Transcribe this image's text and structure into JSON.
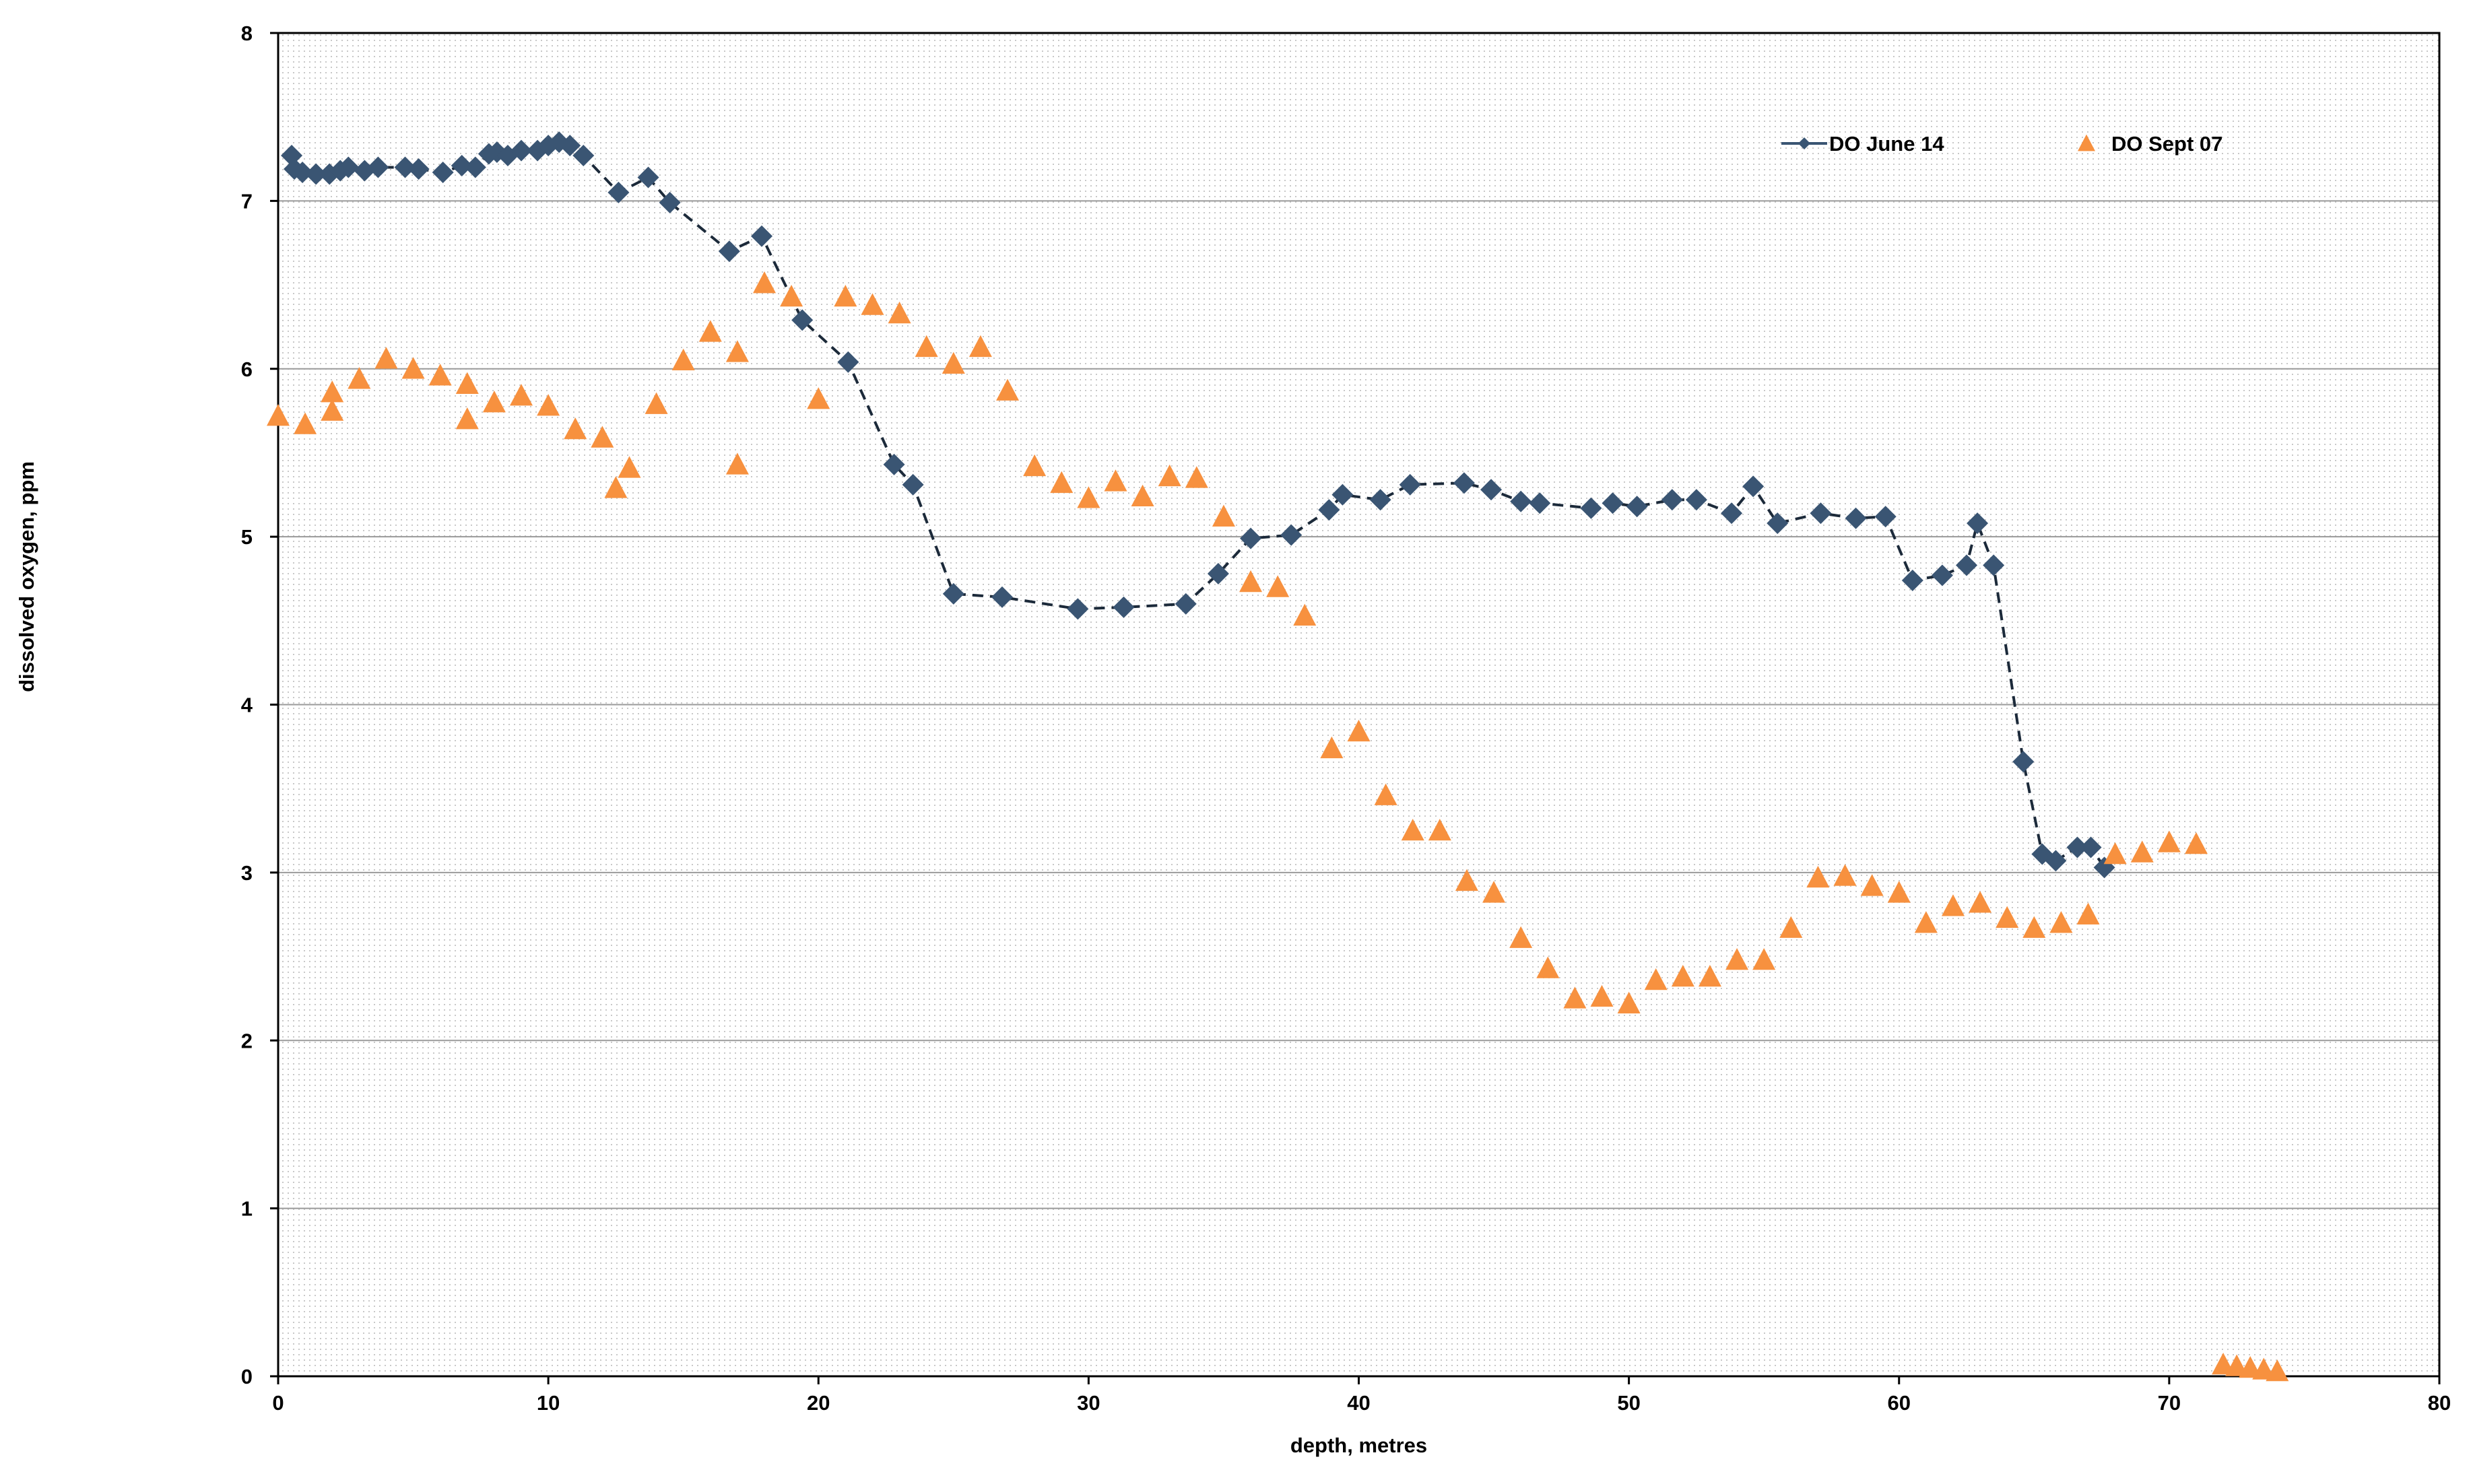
{
  "chart_data": {
    "type": "line",
    "title": "",
    "xlabel": "depth, metres",
    "ylabel": "dissolved oxygen, ppm",
    "xlim": [
      0,
      80
    ],
    "ylim": [
      0,
      8
    ],
    "xticks": [
      0,
      10,
      20,
      30,
      40,
      50,
      60,
      70,
      80
    ],
    "yticks": [
      0,
      1,
      2,
      3,
      4,
      5,
      6,
      7,
      8
    ],
    "grid": "horizontal",
    "legend_position": "top-right",
    "colors": {
      "june": "#3a5573",
      "sept": "#f7913f",
      "gridline": "#9a9a9a",
      "plot_dots": "#c8c8c8"
    },
    "series": [
      {
        "name": "DO June 14",
        "marker": "diamond",
        "line": "dashed",
        "color": "#3a5573",
        "points": [
          [
            0.5,
            7.27
          ],
          [
            0.6,
            7.19
          ],
          [
            0.9,
            7.17
          ],
          [
            1.4,
            7.16
          ],
          [
            1.9,
            7.16
          ],
          [
            2.3,
            7.18
          ],
          [
            2.6,
            7.2
          ],
          [
            3.2,
            7.18
          ],
          [
            3.7,
            7.2
          ],
          [
            4.7,
            7.2
          ],
          [
            5.2,
            7.19
          ],
          [
            6.1,
            7.17
          ],
          [
            6.8,
            7.21
          ],
          [
            7.3,
            7.2
          ],
          [
            7.8,
            7.28
          ],
          [
            8.1,
            7.29
          ],
          [
            8.5,
            7.27
          ],
          [
            9.0,
            7.3
          ],
          [
            9.6,
            7.3
          ],
          [
            10.0,
            7.33
          ],
          [
            10.4,
            7.35
          ],
          [
            10.8,
            7.33
          ],
          [
            11.3,
            7.27
          ],
          [
            12.6,
            7.05
          ],
          [
            13.7,
            7.14
          ],
          [
            14.5,
            6.99
          ],
          [
            16.7,
            6.7
          ],
          [
            17.9,
            6.79
          ],
          [
            19.4,
            6.29
          ],
          [
            21.1,
            6.04
          ],
          [
            22.8,
            5.43
          ],
          [
            23.5,
            5.31
          ],
          [
            25.0,
            4.66
          ],
          [
            26.8,
            4.64
          ],
          [
            29.6,
            4.57
          ],
          [
            31.3,
            4.58
          ],
          [
            33.6,
            4.6
          ],
          [
            34.8,
            4.78
          ],
          [
            36.0,
            4.99
          ],
          [
            37.5,
            5.01
          ],
          [
            38.9,
            5.16
          ],
          [
            39.4,
            5.25
          ],
          [
            40.8,
            5.22
          ],
          [
            41.9,
            5.31
          ],
          [
            43.9,
            5.32
          ],
          [
            44.9,
            5.28
          ],
          [
            46.0,
            5.21
          ],
          [
            46.7,
            5.2
          ],
          [
            48.6,
            5.17
          ],
          [
            49.4,
            5.2
          ],
          [
            50.3,
            5.18
          ],
          [
            51.6,
            5.22
          ],
          [
            52.5,
            5.22
          ],
          [
            53.8,
            5.14
          ],
          [
            54.6,
            5.3
          ],
          [
            55.5,
            5.08
          ],
          [
            57.1,
            5.14
          ],
          [
            58.4,
            5.11
          ],
          [
            59.5,
            5.12
          ],
          [
            60.5,
            4.74
          ],
          [
            61.6,
            4.77
          ],
          [
            62.5,
            4.83
          ],
          [
            62.9,
            5.08
          ],
          [
            63.5,
            4.83
          ],
          [
            64.6,
            3.66
          ],
          [
            65.3,
            3.11
          ],
          [
            65.8,
            3.07
          ],
          [
            66.6,
            3.15
          ],
          [
            67.1,
            3.15
          ],
          [
            67.6,
            3.03
          ]
        ]
      },
      {
        "name": "DO Sept 07",
        "marker": "triangle",
        "line": "none",
        "color": "#f7913f",
        "points": [
          [
            0.0,
            5.71
          ],
          [
            1.0,
            5.66
          ],
          [
            2.0,
            5.85
          ],
          [
            2.0,
            5.74
          ],
          [
            3.0,
            5.93
          ],
          [
            4.0,
            6.05
          ],
          [
            5.0,
            5.99
          ],
          [
            6.0,
            5.95
          ],
          [
            7.0,
            5.9
          ],
          [
            7.0,
            5.69
          ],
          [
            8.0,
            5.79
          ],
          [
            9.0,
            5.83
          ],
          [
            10.0,
            5.77
          ],
          [
            11.0,
            5.63
          ],
          [
            12.0,
            5.58
          ],
          [
            12.5,
            5.28
          ],
          [
            13.0,
            5.4
          ],
          [
            14.0,
            5.78
          ],
          [
            15.0,
            6.04
          ],
          [
            16.0,
            6.21
          ],
          [
            17.0,
            6.09
          ],
          [
            17.0,
            5.42
          ],
          [
            18.0,
            6.5
          ],
          [
            19.0,
            6.42
          ],
          [
            20.0,
            5.81
          ],
          [
            21.0,
            6.42
          ],
          [
            22.0,
            6.37
          ],
          [
            23.0,
            6.32
          ],
          [
            24.0,
            6.12
          ],
          [
            25.0,
            6.02
          ],
          [
            26.0,
            6.12
          ],
          [
            27.0,
            5.86
          ],
          [
            28.0,
            5.41
          ],
          [
            29.0,
            5.31
          ],
          [
            30.0,
            5.22
          ],
          [
            31.0,
            5.32
          ],
          [
            32.0,
            5.23
          ],
          [
            33.0,
            5.35
          ],
          [
            34.0,
            5.34
          ],
          [
            35.0,
            5.11
          ],
          [
            36.0,
            4.72
          ],
          [
            37.0,
            4.69
          ],
          [
            38.0,
            4.52
          ],
          [
            39.0,
            3.73
          ],
          [
            40.0,
            3.83
          ],
          [
            41.0,
            3.45
          ],
          [
            42.0,
            3.24
          ],
          [
            43.0,
            3.24
          ],
          [
            44.0,
            2.94
          ],
          [
            45.0,
            2.87
          ],
          [
            46.0,
            2.6
          ],
          [
            47.0,
            2.42
          ],
          [
            48.0,
            2.24
          ],
          [
            49.0,
            2.25
          ],
          [
            50.0,
            2.21
          ],
          [
            51.0,
            2.35
          ],
          [
            52.0,
            2.37
          ],
          [
            53.0,
            2.37
          ],
          [
            54.0,
            2.47
          ],
          [
            55.0,
            2.47
          ],
          [
            56.0,
            2.66
          ],
          [
            57.0,
            2.96
          ],
          [
            58.0,
            2.97
          ],
          [
            59.0,
            2.91
          ],
          [
            60.0,
            2.87
          ],
          [
            61.0,
            2.69
          ],
          [
            62.0,
            2.79
          ],
          [
            63.0,
            2.81
          ],
          [
            64.0,
            2.72
          ],
          [
            65.0,
            2.66
          ],
          [
            66.0,
            2.69
          ],
          [
            67.0,
            2.74
          ],
          [
            68.0,
            3.1
          ],
          [
            69.0,
            3.11
          ],
          [
            70.0,
            3.17
          ],
          [
            71.0,
            3.16
          ],
          [
            72.0,
            0.06
          ],
          [
            72.5,
            0.05
          ],
          [
            73.0,
            0.04
          ],
          [
            73.5,
            0.03
          ],
          [
            74.0,
            0.02
          ]
        ]
      }
    ]
  }
}
